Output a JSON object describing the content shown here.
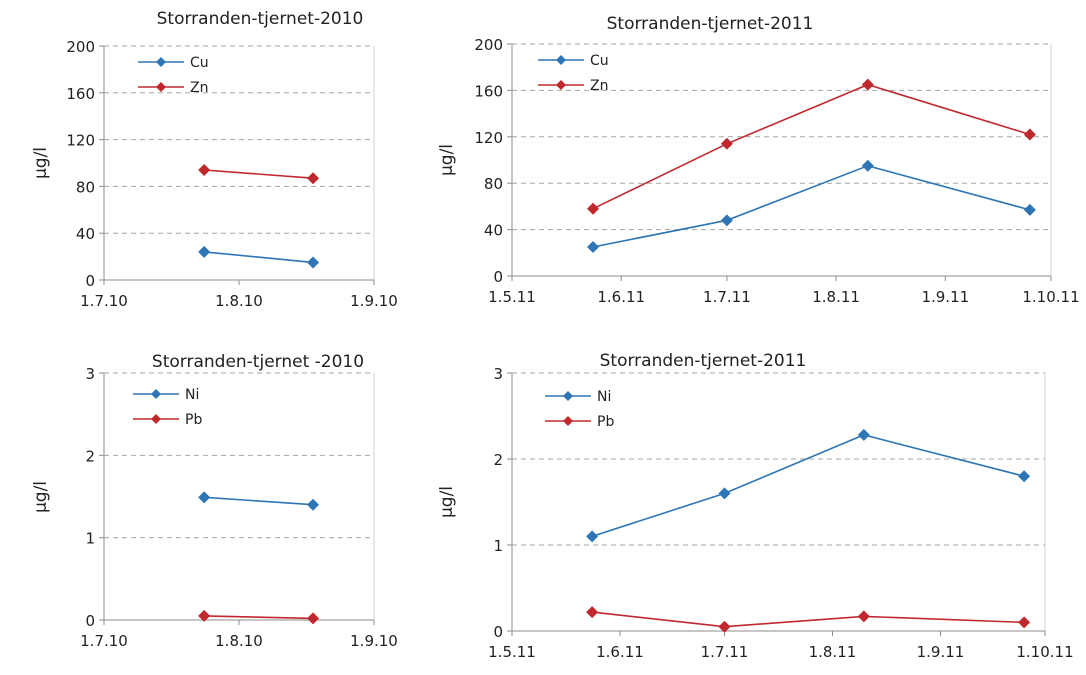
{
  "charts": [
    {
      "type": "line",
      "title": "Storranden-tjernet-2010",
      "ylabel": "µg/l",
      "ylim": [
        0,
        200
      ],
      "yticks": [
        0,
        40,
        80,
        120,
        160,
        200
      ],
      "xlim": [
        "2010-07-01",
        "2010-09-01"
      ],
      "xticks": [
        {
          "date": "2010-07-01",
          "label": "1.7.10"
        },
        {
          "date": "2010-08-01",
          "label": "1.8.10"
        },
        {
          "date": "2010-09-01",
          "label": "1.9.10"
        }
      ],
      "grid": true,
      "legend": "top-left",
      "series": [
        {
          "name": "Cu",
          "color": "#2e75b6",
          "points": [
            {
              "x": "2010-07-24",
              "y": 24
            },
            {
              "x": "2010-08-18",
              "y": 15
            }
          ]
        },
        {
          "name": "Zn",
          "color": "#c0282d",
          "points": [
            {
              "x": "2010-07-24",
              "y": 94
            },
            {
              "x": "2010-08-18",
              "y": 87
            }
          ]
        }
      ]
    },
    {
      "type": "line",
      "title": "Storranden-tjernet-2011",
      "ylabel": "µg/l",
      "ylim": [
        0,
        200
      ],
      "yticks": [
        0,
        40,
        80,
        120,
        160,
        200
      ],
      "xlim": [
        "2011-05-01",
        "2011-10-01"
      ],
      "xticks": [
        {
          "date": "2011-05-01",
          "label": "1.5.11"
        },
        {
          "date": "2011-06-01",
          "label": "1.6.11"
        },
        {
          "date": "2011-07-01",
          "label": "1.7.11"
        },
        {
          "date": "2011-08-01",
          "label": "1.8.11"
        },
        {
          "date": "2011-09-01",
          "label": "1.9.11"
        },
        {
          "date": "2011-10-01",
          "label": "1.10.11"
        }
      ],
      "grid": true,
      "legend": "top-left",
      "series": [
        {
          "name": "Cu",
          "color": "#2e75b6",
          "points": [
            {
              "x": "2011-05-24",
              "y": 25
            },
            {
              "x": "2011-07-01",
              "y": 48
            },
            {
              "x": "2011-08-10",
              "y": 95
            },
            {
              "x": "2011-09-25",
              "y": 57
            }
          ]
        },
        {
          "name": "Zn",
          "color": "#c0282d",
          "points": [
            {
              "x": "2011-05-24",
              "y": 58
            },
            {
              "x": "2011-07-01",
              "y": 114
            },
            {
              "x": "2011-08-10",
              "y": 165
            },
            {
              "x": "2011-09-25",
              "y": 122
            }
          ]
        }
      ]
    },
    {
      "type": "line",
      "title": "Storranden-tjernet -2010",
      "ylabel": "µg/l",
      "ylim": [
        0,
        3
      ],
      "yticks": [
        0,
        1,
        2,
        3
      ],
      "xlim": [
        "2010-07-01",
        "2010-09-01"
      ],
      "xticks": [
        {
          "date": "2010-07-01",
          "label": "1.7.10"
        },
        {
          "date": "2010-08-01",
          "label": "1.8.10"
        },
        {
          "date": "2010-09-01",
          "label": "1.9.10"
        }
      ],
      "grid": true,
      "legend": "top-left",
      "series": [
        {
          "name": "Ni",
          "color": "#2e75b6",
          "points": [
            {
              "x": "2010-07-24",
              "y": 1.49
            },
            {
              "x": "2010-08-18",
              "y": 1.4
            }
          ]
        },
        {
          "name": "Pb",
          "color": "#c0282d",
          "points": [
            {
              "x": "2010-07-24",
              "y": 0.05
            },
            {
              "x": "2010-08-18",
              "y": 0.02
            }
          ]
        }
      ]
    },
    {
      "type": "line",
      "title": "Storranden-tjernet-2011",
      "ylabel": "µg/l",
      "ylim": [
        0,
        3
      ],
      "yticks": [
        0,
        1,
        2,
        3
      ],
      "xlim": [
        "2011-05-01",
        "2011-10-01"
      ],
      "xticks": [
        {
          "date": "2011-05-01",
          "label": "1.5.11"
        },
        {
          "date": "2011-06-01",
          "label": "1.6.11"
        },
        {
          "date": "2011-07-01",
          "label": "1.7.11"
        },
        {
          "date": "2011-08-01",
          "label": "1.8.11"
        },
        {
          "date": "2011-09-01",
          "label": "1.9.11"
        },
        {
          "date": "2011-10-01",
          "label": "1.10.11"
        }
      ],
      "grid": true,
      "legend": "top-left",
      "series": [
        {
          "name": "Ni",
          "color": "#2e75b6",
          "points": [
            {
              "x": "2011-05-24",
              "y": 1.1
            },
            {
              "x": "2011-07-01",
              "y": 1.6
            },
            {
              "x": "2011-08-10",
              "y": 2.28
            },
            {
              "x": "2011-09-25",
              "y": 1.8
            }
          ]
        },
        {
          "name": "Pb",
          "color": "#c0282d",
          "points": [
            {
              "x": "2011-05-24",
              "y": 0.22
            },
            {
              "x": "2011-07-01",
              "y": 0.05
            },
            {
              "x": "2011-08-10",
              "y": 0.17
            },
            {
              "x": "2011-09-25",
              "y": 0.1
            }
          ]
        }
      ]
    }
  ]
}
